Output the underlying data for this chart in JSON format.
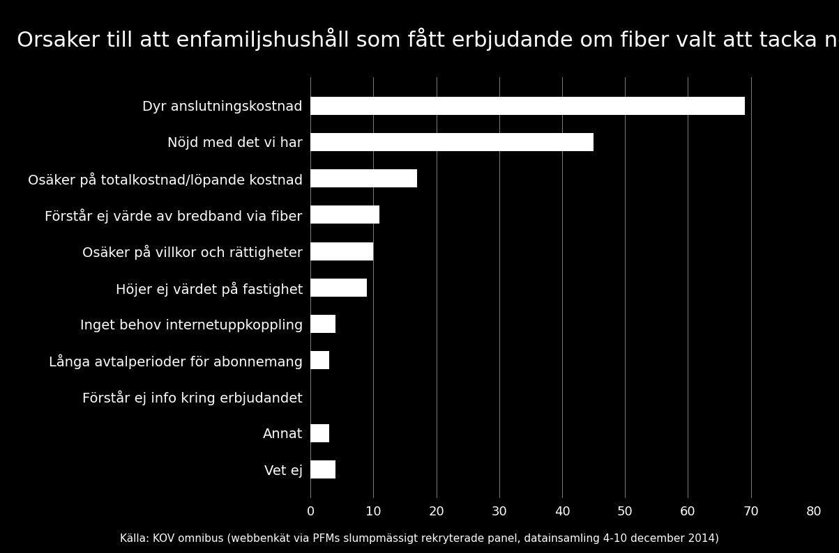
{
  "title": "Orsaker till att enfamiljshushåll som fått erbjudande om fiber valt att tacka nej",
  "categories": [
    "Dyr anslutningskostnad",
    "Nöjd med det vi har",
    "Osäker på totalkostnad/löpande kostnad",
    "Förstår ej värde av bredband via fiber",
    "Osäker på villkor och rättigheter",
    "Höjer ej värdet på fastighet",
    "Inget behov internetuppkoppling",
    "Långa avtalperioder för abonnemang",
    "Förstår ej info kring erbjudandet",
    "Annat",
    "Vet ej"
  ],
  "values": [
    69,
    45,
    17,
    11,
    10,
    9,
    4,
    3,
    0,
    3,
    4
  ],
  "bar_color": "#ffffff",
  "background_color": "#000000",
  "text_color": "#ffffff",
  "grid_color": "#ffffff",
  "xlim": [
    0,
    80
  ],
  "xticks": [
    0,
    10,
    20,
    30,
    40,
    50,
    60,
    70,
    80
  ],
  "caption": "Källa: KOV omnibus (webbenkät via PFMs slumpmässigt rekryterade panel, datainsamling 4-10 december 2014)",
  "title_fontsize": 22,
  "label_fontsize": 14,
  "tick_fontsize": 13,
  "caption_fontsize": 11,
  "bar_height": 0.5
}
